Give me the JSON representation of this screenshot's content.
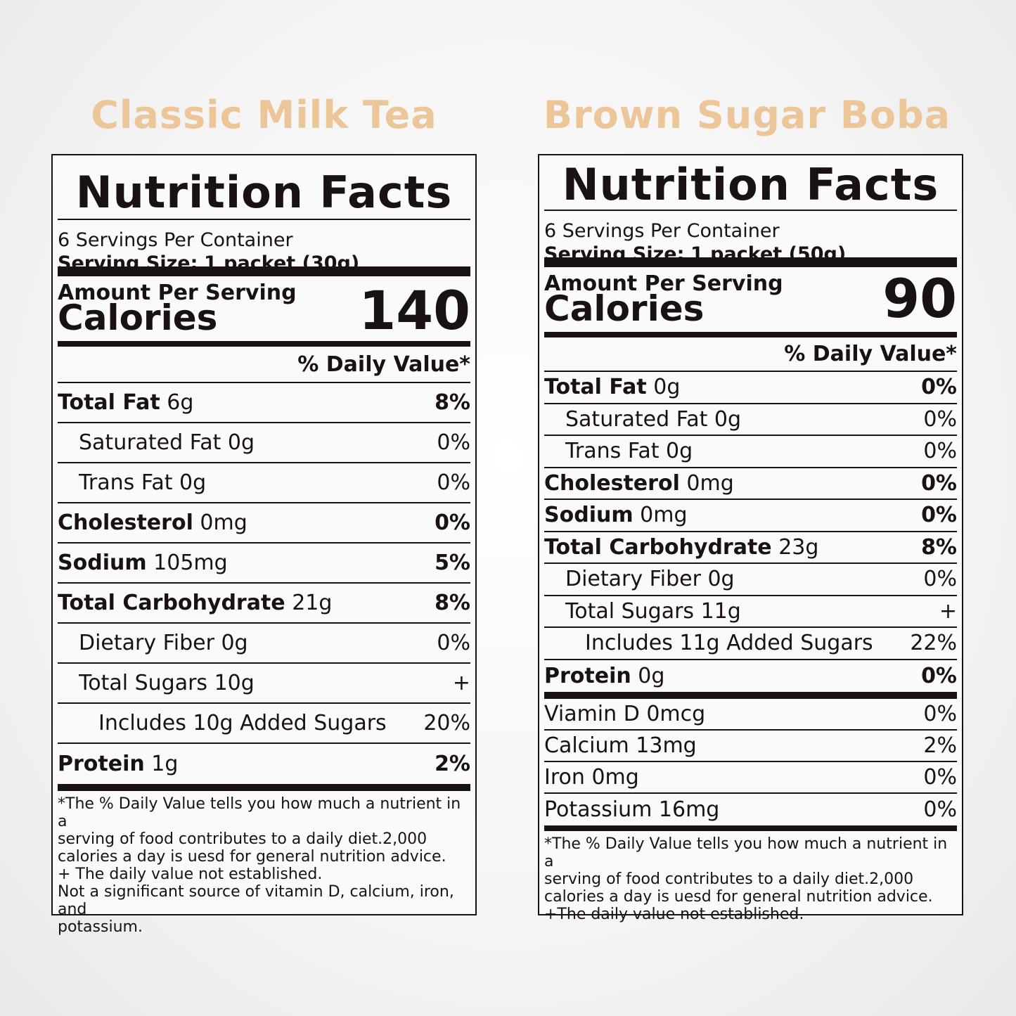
{
  "products": [
    {
      "title": "Classic Milk Tea",
      "heading": "Nutrition Facts",
      "servings_per_container": "6 Servings Per Container",
      "serving_size_label": "Serving Size:",
      "serving_size_value": "1 packet (30g)",
      "amount_per_serving": "Amount Per Serving",
      "calories_label": "Calories",
      "calories": "140",
      "daily_value_header": "%  Daily Value*",
      "nutrients": [
        {
          "name": "Total Fat",
          "amount": "6g",
          "dv": "8%",
          "bold": true,
          "indent": 0
        },
        {
          "name": "Saturated Fat",
          "amount": "0g",
          "dv": "0%",
          "bold": false,
          "indent": 1
        },
        {
          "name": "Trans Fat",
          "amount": "0g",
          "dv": "0%",
          "bold": false,
          "indent": 1
        },
        {
          "name": "Cholesterol",
          "amount": "0mg",
          "dv": "0%",
          "bold": true,
          "indent": 0
        },
        {
          "name": "Sodium",
          "amount": "105mg",
          "dv": "5%",
          "bold": true,
          "indent": 0
        },
        {
          "name": "Total Carbohydrate",
          "amount": "21g",
          "dv": "8%",
          "bold": true,
          "indent": 0
        },
        {
          "name": "Dietary Fiber",
          "amount": "0g",
          "dv": "0%",
          "bold": false,
          "indent": 1
        },
        {
          "name": "Total Sugars",
          "amount": "10g",
          "dv": "+",
          "bold": false,
          "indent": 1
        },
        {
          "name": "Includes 10g Added Sugars",
          "amount": "",
          "dv": "20%",
          "bold": false,
          "indent": 2
        },
        {
          "name": "Protein",
          "amount": "1g",
          "dv": "2%",
          "bold": true,
          "indent": 0
        }
      ],
      "vitamins": [],
      "footnote": [
        "*The % Daily Value tells you how much a nutrient in a",
        "serving of food contributes to a daily diet.2,000",
        "calories a day is uesd for general nutrition advice.",
        "+ The daily value not established.",
        "Not a significant source of vitamin D, calcium, iron, and",
        "potassium."
      ]
    },
    {
      "title": "Brown Sugar Boba",
      "heading": "Nutrition Facts",
      "servings_per_container": "6 Servings Per Container",
      "serving_size_label": "Serving Size:",
      "serving_size_value": "1 packet (50g)",
      "amount_per_serving": "Amount Per Serving",
      "calories_label": "Calories",
      "calories": "90",
      "daily_value_header": "%  Daily Value*",
      "nutrients": [
        {
          "name": "Total Fat",
          "amount": "0g",
          "dv": "0%",
          "bold": true,
          "indent": 0
        },
        {
          "name": "Saturated Fat",
          "amount": "0g",
          "dv": "0%",
          "bold": false,
          "indent": 1
        },
        {
          "name": "Trans Fat",
          "amount": "0g",
          "dv": "0%",
          "bold": false,
          "indent": 1
        },
        {
          "name": "Cholesterol",
          "amount": "0mg",
          "dv": "0%",
          "bold": true,
          "indent": 0
        },
        {
          "name": "Sodium",
          "amount": "0mg",
          "dv": "0%",
          "bold": true,
          "indent": 0
        },
        {
          "name": "Total Carbohydrate",
          "amount": "23g",
          "dv": "8%",
          "bold": true,
          "indent": 0
        },
        {
          "name": "Dietary Fiber",
          "amount": "0g",
          "dv": "0%",
          "bold": false,
          "indent": 1
        },
        {
          "name": "Total Sugars",
          "amount": "11g",
          "dv": "+",
          "bold": false,
          "indent": 1
        },
        {
          "name": "Includes 11g Added Sugars",
          "amount": "",
          "dv": "22%",
          "bold": false,
          "indent": 2
        },
        {
          "name": "Protein",
          "amount": "0g",
          "dv": "0%",
          "bold": true,
          "indent": 0
        }
      ],
      "vitamins": [
        {
          "name": "Viamin D",
          "amount": "0mcg",
          "dv": "0%"
        },
        {
          "name": "Calcium",
          "amount": "13mg",
          "dv": "2%"
        },
        {
          "name": "Iron",
          "amount": "0mg",
          "dv": "0%"
        },
        {
          "name": "Potassium",
          "amount": "16mg",
          "dv": "0%"
        }
      ],
      "footnote": [
        "*The % Daily Value tells you how much a nutrient in a",
        "serving of food contributes to a daily diet.2,000",
        "calories a day is uesd for general nutrition advice.",
        "+The daily value not established."
      ]
    }
  ]
}
